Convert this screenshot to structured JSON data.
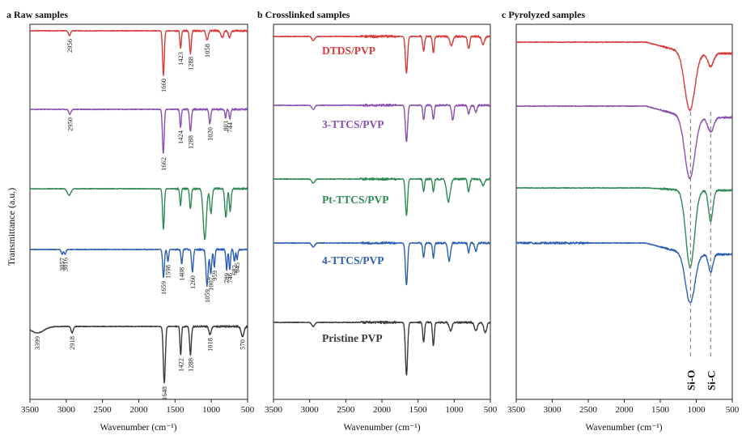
{
  "chart_data": {
    "type": "line",
    "ylabel": "Transmittance (a.u.)",
    "xlabel": "Wavenumber (cm⁻¹)",
    "xlim": [
      3500,
      500
    ],
    "xticks": [
      3500,
      3000,
      2500,
      2000,
      1500,
      1000,
      500
    ],
    "panels": [
      {
        "title": "a Raw samples",
        "series": [
          {
            "color": "#d93a3a",
            "peaks": [
              {
                "x": 2956,
                "d": 6,
                "w": 15
              },
              {
                "x": 1660,
                "d": 55,
                "w": 12
              },
              {
                "x": 1423,
                "d": 22,
                "w": 10
              },
              {
                "x": 1288,
                "d": 28,
                "w": 12
              },
              {
                "x": 1058,
                "d": 12,
                "w": 15
              },
              {
                "x": 850,
                "d": 8,
                "w": 20
              },
              {
                "x": 750,
                "d": 8,
                "w": 15
              }
            ],
            "labels": [
              {
                "x": 2956,
                "text": "2956"
              },
              {
                "x": 1660,
                "text": "1660"
              },
              {
                "x": 1423,
                "text": "1423"
              },
              {
                "x": 1288,
                "text": "1288"
              },
              {
                "x": 1058,
                "text": "1058"
              }
            ]
          },
          {
            "color": "#8a4fb0",
            "peaks": [
              {
                "x": 2950,
                "d": 6,
                "w": 15
              },
              {
                "x": 1662,
                "d": 55,
                "w": 12
              },
              {
                "x": 1424,
                "d": 22,
                "w": 10
              },
              {
                "x": 1288,
                "d": 28,
                "w": 12
              },
              {
                "x": 1020,
                "d": 18,
                "w": 12
              },
              {
                "x": 803,
                "d": 10,
                "w": 10
              },
              {
                "x": 744,
                "d": 12,
                "w": 10
              }
            ],
            "labels": [
              {
                "x": 2950,
                "text": "2950"
              },
              {
                "x": 1662,
                "text": "1662"
              },
              {
                "x": 1424,
                "text": "1424"
              },
              {
                "x": 1288,
                "text": "1288"
              },
              {
                "x": 1020,
                "text": "1020"
              },
              {
                "x": 803,
                "text": "803"
              },
              {
                "x": 744,
                "text": "744"
              }
            ]
          },
          {
            "color": "#2f8a55",
            "peaks": [
              {
                "x": 2960,
                "d": 8,
                "w": 25
              },
              {
                "x": 1660,
                "d": 50,
                "w": 12
              },
              {
                "x": 1425,
                "d": 20,
                "w": 10
              },
              {
                "x": 1288,
                "d": 25,
                "w": 12
              },
              {
                "x": 1090,
                "d": 62,
                "w": 22
              },
              {
                "x": 1005,
                "d": 30,
                "w": 15
              },
              {
                "x": 800,
                "d": 35,
                "w": 15
              },
              {
                "x": 740,
                "d": 28,
                "w": 12
              }
            ],
            "labels": []
          },
          {
            "color": "#2c5fb3",
            "peaks": [
              {
                "x": 3057,
                "d": 6,
                "w": 12
              },
              {
                "x": 3016,
                "d": 6,
                "w": 12
              },
              {
                "x": 1659,
                "d": 35,
                "w": 12
              },
              {
                "x": 1598,
                "d": 15,
                "w": 10
              },
              {
                "x": 1408,
                "d": 18,
                "w": 10
              },
              {
                "x": 1260,
                "d": 28,
                "w": 12
              },
              {
                "x": 1059,
                "d": 45,
                "w": 15
              },
              {
                "x": 1007,
                "d": 30,
                "w": 12
              },
              {
                "x": 959,
                "d": 22,
                "w": 10
              },
              {
                "x": 789,
                "d": 25,
                "w": 10
              },
              {
                "x": 746,
                "d": 25,
                "w": 10
              },
              {
                "x": 682,
                "d": 15,
                "w": 10
              },
              {
                "x": 645,
                "d": 12,
                "w": 10
              }
            ],
            "labels": [
              {
                "x": 3057,
                "text": "3057"
              },
              {
                "x": 3016,
                "text": "3016"
              },
              {
                "x": 1659,
                "text": "1659"
              },
              {
                "x": 1598,
                "text": "1598"
              },
              {
                "x": 1408,
                "text": "1408"
              },
              {
                "x": 1260,
                "text": "1260"
              },
              {
                "x": 1059,
                "text": "1059"
              },
              {
                "x": 1007,
                "text": "1007"
              },
              {
                "x": 959,
                "text": "959"
              },
              {
                "x": 789,
                "text": "789"
              },
              {
                "x": 746,
                "text": "746"
              },
              {
                "x": 682,
                "text": "682"
              },
              {
                "x": 645,
                "text": "645"
              }
            ]
          },
          {
            "color": "#3a3a3a",
            "peaks": [
              {
                "x": 3399,
                "d": 8,
                "w": 90
              },
              {
                "x": 2918,
                "d": 8,
                "w": 15
              },
              {
                "x": 1648,
                "d": 70,
                "w": 14
              },
              {
                "x": 1422,
                "d": 35,
                "w": 10
              },
              {
                "x": 1288,
                "d": 35,
                "w": 12
              },
              {
                "x": 1018,
                "d": 10,
                "w": 15
              },
              {
                "x": 570,
                "d": 12,
                "w": 20
              }
            ],
            "labels": [
              {
                "x": 3399,
                "text": "3399"
              },
              {
                "x": 2918,
                "text": "2918"
              },
              {
                "x": 1648,
                "text": "1648"
              },
              {
                "x": 1422,
                "text": "1422"
              },
              {
                "x": 1288,
                "text": "1288"
              },
              {
                "x": 1018,
                "text": "1018"
              },
              {
                "x": 570,
                "text": "570"
              }
            ]
          }
        ]
      },
      {
        "title": "b Crosslinked samples",
        "series": [
          {
            "name": "DTDS/PVP",
            "color": "#d93a3a",
            "peaks": [
              {
                "x": 2950,
                "d": 5,
                "w": 20
              },
              {
                "x": 1660,
                "d": 45,
                "w": 15
              },
              {
                "x": 1423,
                "d": 18,
                "w": 12
              },
              {
                "x": 1288,
                "d": 20,
                "w": 12
              },
              {
                "x": 1040,
                "d": 12,
                "w": 20
              },
              {
                "x": 800,
                "d": 15,
                "w": 15
              },
              {
                "x": 600,
                "d": 10,
                "w": 20
              }
            ]
          },
          {
            "name": "3-TTCS/PVP",
            "color": "#8a4fb0",
            "peaks": [
              {
                "x": 2950,
                "d": 5,
                "w": 20
              },
              {
                "x": 1660,
                "d": 45,
                "w": 15
              },
              {
                "x": 1423,
                "d": 18,
                "w": 12
              },
              {
                "x": 1288,
                "d": 18,
                "w": 12
              },
              {
                "x": 1020,
                "d": 18,
                "w": 15
              },
              {
                "x": 800,
                "d": 10,
                "w": 15
              },
              {
                "x": 700,
                "d": 8,
                "w": 15
              }
            ]
          },
          {
            "name": "Pt-TTCS/PVP",
            "color": "#2f8a55",
            "peaks": [
              {
                "x": 2950,
                "d": 5,
                "w": 20
              },
              {
                "x": 1660,
                "d": 45,
                "w": 15
              },
              {
                "x": 1423,
                "d": 15,
                "w": 12
              },
              {
                "x": 1288,
                "d": 15,
                "w": 12
              },
              {
                "x": 1080,
                "d": 28,
                "w": 25
              },
              {
                "x": 800,
                "d": 15,
                "w": 15
              },
              {
                "x": 600,
                "d": 8,
                "w": 20
              }
            ]
          },
          {
            "name": "4-TTCS/PVP",
            "color": "#2c5fb3",
            "peaks": [
              {
                "x": 2950,
                "d": 5,
                "w": 20
              },
              {
                "x": 1660,
                "d": 52,
                "w": 15
              },
              {
                "x": 1423,
                "d": 18,
                "w": 12
              },
              {
                "x": 1288,
                "d": 18,
                "w": 12
              },
              {
                "x": 1070,
                "d": 22,
                "w": 18
              },
              {
                "x": 800,
                "d": 12,
                "w": 12
              },
              {
                "x": 700,
                "d": 10,
                "w": 15
              }
            ]
          },
          {
            "name": "Pristine PVP",
            "color": "#3a3a3a",
            "peaks": [
              {
                "x": 2950,
                "d": 5,
                "w": 20
              },
              {
                "x": 1660,
                "d": 65,
                "w": 15
              },
              {
                "x": 1423,
                "d": 25,
                "w": 12
              },
              {
                "x": 1288,
                "d": 28,
                "w": 12
              },
              {
                "x": 1050,
                "d": 10,
                "w": 20
              },
              {
                "x": 700,
                "d": 10,
                "w": 20
              },
              {
                "x": 570,
                "d": 12,
                "w": 20
              }
            ]
          }
        ]
      },
      {
        "title": "c Pyrolyzed samples",
        "series": [
          {
            "color": "#d93a3a",
            "peaks": [
              {
                "x": 1090,
                "d": 70,
                "w": 70
              },
              {
                "x": 800,
                "d": 16,
                "w": 40
              }
            ]
          },
          {
            "color": "#8a4fb0",
            "peaks": [
              {
                "x": 1090,
                "d": 75,
                "w": 70
              },
              {
                "x": 800,
                "d": 18,
                "w": 40
              }
            ]
          },
          {
            "color": "#2f8a55",
            "peaks": [
              {
                "x": 1085,
                "d": 95,
                "w": 60
              },
              {
                "x": 800,
                "d": 38,
                "w": 30
              }
            ]
          },
          {
            "color": "#2c5fb3",
            "peaks": [
              {
                "x": 1085,
                "d": 60,
                "w": 65
              },
              {
                "x": 800,
                "d": 22,
                "w": 30
              }
            ]
          }
        ],
        "marker_lines": [
          {
            "x": 1080,
            "text": "Si-O"
          },
          {
            "x": 800,
            "text": "Si-C"
          }
        ]
      }
    ]
  }
}
